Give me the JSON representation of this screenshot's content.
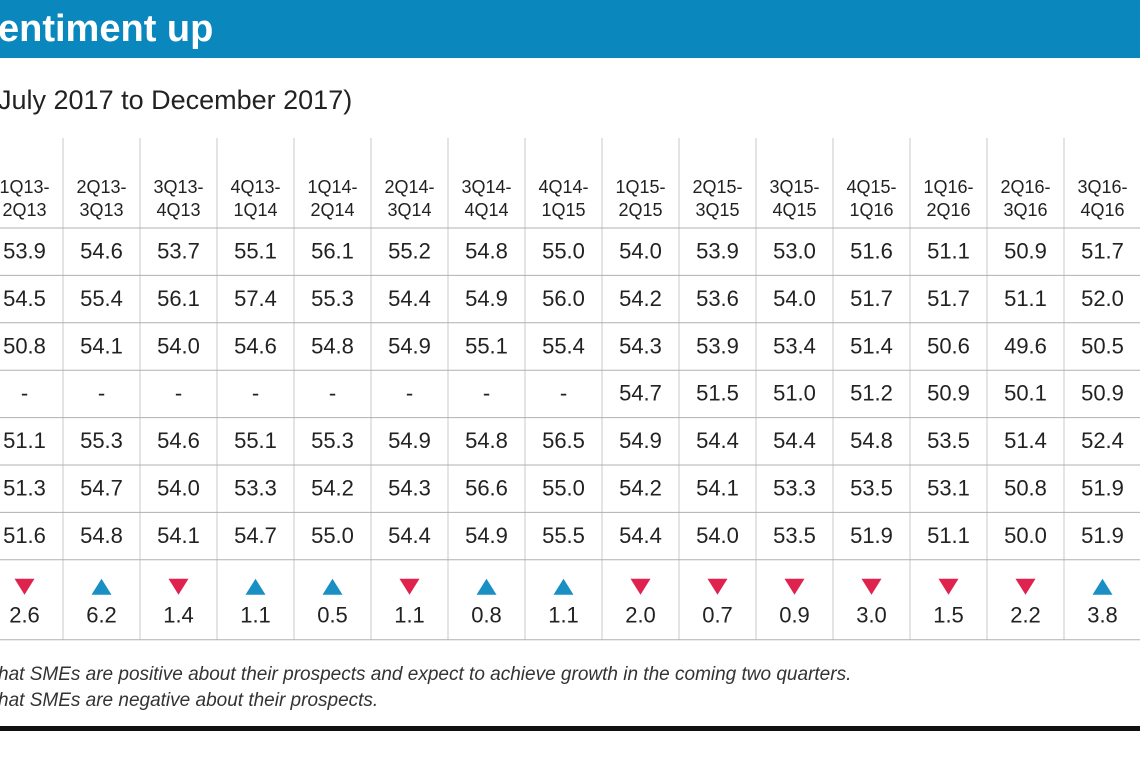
{
  "header": {
    "title": "entiment up",
    "subtitle": "July 2017 to December 2017)"
  },
  "table": {
    "columns": [
      [
        "1Q13-",
        "2Q13"
      ],
      [
        "2Q13-",
        "3Q13"
      ],
      [
        "3Q13-",
        "4Q13"
      ],
      [
        "4Q13-",
        "1Q14"
      ],
      [
        "1Q14-",
        "2Q14"
      ],
      [
        "2Q14-",
        "3Q14"
      ],
      [
        "3Q14-",
        "4Q14"
      ],
      [
        "4Q14-",
        "1Q15"
      ],
      [
        "1Q15-",
        "2Q15"
      ],
      [
        "2Q15-",
        "3Q15"
      ],
      [
        "3Q15-",
        "4Q15"
      ],
      [
        "4Q15-",
        "1Q16"
      ],
      [
        "1Q16-",
        "2Q16"
      ],
      [
        "2Q16-",
        "3Q16"
      ],
      [
        "3Q16-",
        "4Q16"
      ]
    ],
    "rows": [
      [
        "53.9",
        "54.6",
        "53.7",
        "55.1",
        "56.1",
        "55.2",
        "54.8",
        "55.0",
        "54.0",
        "53.9",
        "53.0",
        "51.6",
        "51.1",
        "50.9",
        "51.7"
      ],
      [
        "54.5",
        "55.4",
        "56.1",
        "57.4",
        "55.3",
        "54.4",
        "54.9",
        "56.0",
        "54.2",
        "53.6",
        "54.0",
        "51.7",
        "51.7",
        "51.1",
        "52.0"
      ],
      [
        "50.8",
        "54.1",
        "54.0",
        "54.6",
        "54.8",
        "54.9",
        "55.1",
        "55.4",
        "54.3",
        "53.9",
        "53.4",
        "51.4",
        "50.6",
        "49.6",
        "50.5"
      ],
      [
        "-",
        "-",
        "-",
        "-",
        "-",
        "-",
        "-",
        "-",
        "54.7",
        "51.5",
        "51.0",
        "51.2",
        "50.9",
        "50.1",
        "50.9"
      ],
      [
        "51.1",
        "55.3",
        "54.6",
        "55.1",
        "55.3",
        "54.9",
        "54.8",
        "56.5",
        "54.9",
        "54.4",
        "54.4",
        "54.8",
        "53.5",
        "51.4",
        "52.4"
      ],
      [
        "51.3",
        "54.7",
        "54.0",
        "53.3",
        "54.2",
        "54.3",
        "56.6",
        "55.0",
        "54.2",
        "54.1",
        "53.3",
        "53.5",
        "53.1",
        "50.8",
        "51.9"
      ],
      [
        "51.6",
        "54.8",
        "54.1",
        "54.7",
        "55.0",
        "54.4",
        "54.9",
        "55.5",
        "54.4",
        "54.0",
        "53.5",
        "51.9",
        "51.1",
        "50.0",
        "51.9"
      ]
    ],
    "change": [
      {
        "direction": "down",
        "value": "2.6"
      },
      {
        "direction": "up",
        "value": "6.2"
      },
      {
        "direction": "down",
        "value": "1.4"
      },
      {
        "direction": "up",
        "value": "1.1"
      },
      {
        "direction": "up",
        "value": "0.5"
      },
      {
        "direction": "down",
        "value": "1.1"
      },
      {
        "direction": "up",
        "value": "0.8"
      },
      {
        "direction": "up",
        "value": "1.1"
      },
      {
        "direction": "down",
        "value": "2.0"
      },
      {
        "direction": "down",
        "value": "0.7"
      },
      {
        "direction": "down",
        "value": "0.9"
      },
      {
        "direction": "down",
        "value": "3.0"
      },
      {
        "direction": "down",
        "value": "1.5"
      },
      {
        "direction": "down",
        "value": "2.2"
      },
      {
        "direction": "up",
        "value": "3.8"
      }
    ]
  },
  "footnotes": [
    "hat SMEs are positive about their prospects and expect to achieve growth in the coming two quarters.",
    "hat SMEs are negative about their prospects."
  ]
}
